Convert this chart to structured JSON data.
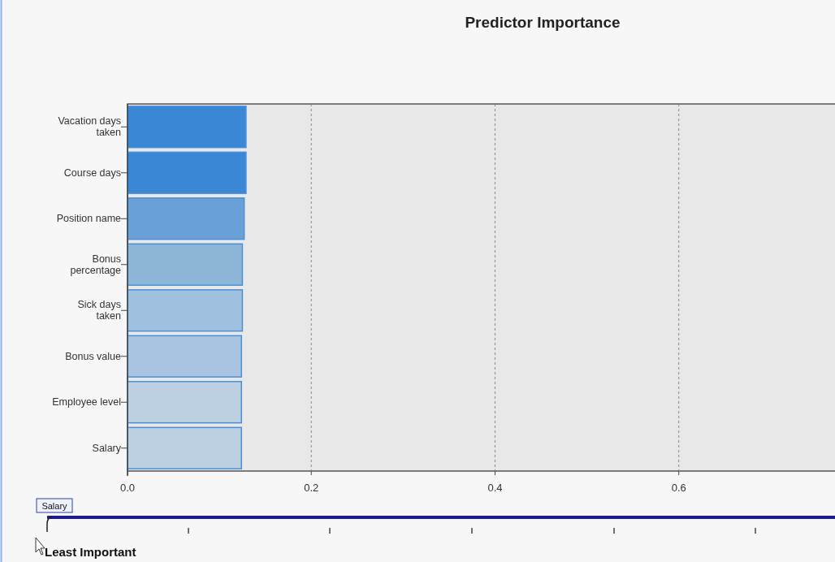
{
  "chart_data": {
    "type": "bar",
    "orientation": "horizontal",
    "title": "Predictor Importance",
    "categories": [
      "Vacation days taken",
      "Course days",
      "Position name",
      "Bonus percentage",
      "Sick days taken",
      "Bonus value",
      "Employee level",
      "Salary"
    ],
    "values": [
      0.129,
      0.129,
      0.127,
      0.125,
      0.125,
      0.124,
      0.124,
      0.124
    ],
    "colors": [
      "#3a87d6",
      "#3a87d6",
      "#6aa0d8",
      "#8db6d9",
      "#9fc0de",
      "#a8c4e0",
      "#bdd0e2",
      "#bdd0e2"
    ],
    "xlim": [
      0,
      0.77
    ],
    "xticks": [
      {
        "value": 0,
        "label": "0.0"
      },
      {
        "value": 0.2,
        "label": "0.2"
      },
      {
        "value": 0.4,
        "label": "0.4"
      },
      {
        "value": 0.6,
        "label": "0.6"
      }
    ],
    "grid": "x",
    "annotations": [
      "Salary",
      "Least Important"
    ]
  }
}
